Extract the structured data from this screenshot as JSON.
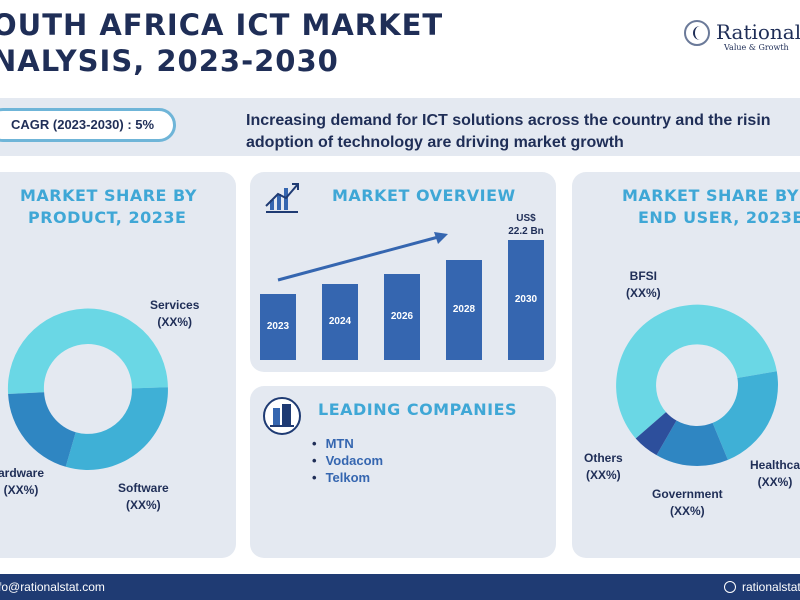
{
  "header": {
    "title_line1": "OUTH AFRICA ICT MARKET",
    "title_line2": "NALYSIS, 2023-2030",
    "logo_name": "RationalSt",
    "logo_tagline": "Value & Growth"
  },
  "highlight": {
    "cagr": "CAGR (2023-2030) : 5%",
    "headline_line1": "Increasing demand for ICT solutions across the country and the risin",
    "headline_line2": "adoption of technology are driving market growth"
  },
  "product_share": {
    "title_line1": "MARKET SHARE BY",
    "title_line2": "PRODUCT, 2023E",
    "segments": [
      {
        "name": "Services",
        "value": "(XX%)",
        "color": "#6ad7e5"
      },
      {
        "name": "Software",
        "value": "(XX%)",
        "color": "#3fb0d6"
      },
      {
        "name": "ardware",
        "value": "(XX%)",
        "color": "#2f86c2"
      }
    ]
  },
  "market_overview": {
    "title": "MARKET OVERVIEW",
    "icon": "trend-chart-icon",
    "value_label_line1": "US$",
    "value_label_line2": "22.2 Bn",
    "years": [
      "2023",
      "2024",
      "2026",
      "2028",
      "2030"
    ],
    "relative_heights": [
      0.55,
      0.63,
      0.72,
      0.83,
      1.0
    ],
    "bar_color": "#3566b0"
  },
  "leading_companies": {
    "title": "LEADING COMPANIES",
    "icon": "building-icon",
    "items": [
      "MTN",
      "Vodacom",
      "Telkom"
    ]
  },
  "end_user_share": {
    "title_line1": "MARKET SHARE BY",
    "title_line2": "END USER, 2023E",
    "segments": [
      {
        "name": "BFSI",
        "value": "(XX%)",
        "color": "#6ad7e5"
      },
      {
        "name": "Healthca",
        "value": "(XX%)",
        "color": "#3fb0d6"
      },
      {
        "name": "Government",
        "value": "(XX%)",
        "color": "#2f86c2"
      },
      {
        "name": "Others",
        "value": "(XX%)",
        "color": "#2d4f9c"
      }
    ]
  },
  "footer": {
    "email": "fo@rationalstat.com",
    "website": "rationalstat.com"
  }
}
